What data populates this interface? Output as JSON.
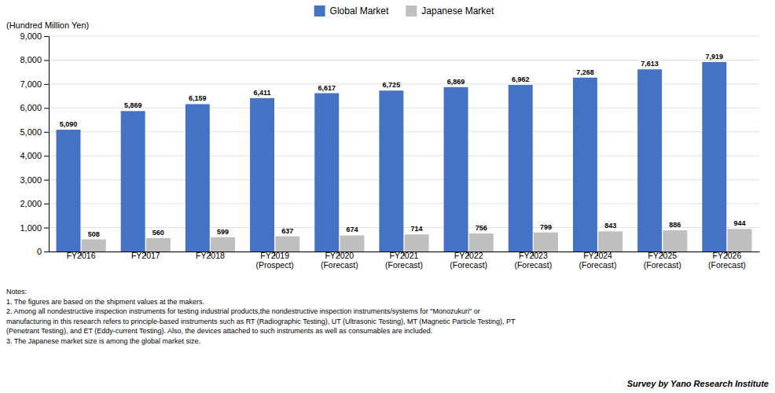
{
  "chart_data": {
    "type": "bar",
    "ylabel": "(Hundred Million Yen)",
    "categories": [
      "FY2016",
      "FY2017",
      "FY2018",
      "FY2019\n(Prospect)",
      "FY2020\n(Forecast)",
      "FY2021\n(Forecast)",
      "FY2022\n(Forecast)",
      "FY2023\n(Forecast)",
      "FY2024\n(Forecast)",
      "FY2025\n(Forecast)",
      "FY2026\n(Forecast)"
    ],
    "series": [
      {
        "name": "Global Market",
        "color": "#4472C4",
        "values": [
          5090,
          5869,
          6159,
          6411,
          6617,
          6725,
          6869,
          6962,
          7268,
          7613,
          7919
        ],
        "value_labels": [
          "5,090",
          "5,869",
          "6,159",
          "6,411",
          "6,617",
          "6,725",
          "6,869",
          "6,962",
          "7,268",
          "7,613",
          "7,919"
        ]
      },
      {
        "name": "Japanese Market",
        "color": "#BFBFBF",
        "values": [
          508,
          560,
          599,
          637,
          674,
          714,
          756,
          799,
          843,
          886,
          944
        ],
        "value_labels": [
          "508",
          "560",
          "599",
          "637",
          "674",
          "714",
          "756",
          "799",
          "843",
          "886",
          "944"
        ]
      }
    ],
    "ylim": [
      0,
      9000
    ],
    "yticks": [
      0,
      {
        "value": 1000,
        "label": "1,000"
      },
      {
        "value": 2000,
        "label": "2,000"
      },
      {
        "value": 3000,
        "label": "3,000"
      },
      {
        "value": 4000,
        "label": "4,000"
      },
      {
        "value": 5000,
        "label": "5,000"
      },
      {
        "value": 6000,
        "label": "6,000"
      },
      {
        "value": 7000,
        "label": "7,000"
      },
      {
        "value": 8000,
        "label": "8,000"
      },
      {
        "value": 9000,
        "label": "9,000"
      }
    ],
    "grid": true,
    "legend": "top",
    "data_labels": true,
    "notes": [
      "Notes:",
      "1. The figures are based on the shipment values at the makers.",
      "2. Among all nondestructive inspection instruments for testing industrial products,the nondestructive inspection instruments/systems for \"Monozukuri\" or",
      "manufacturing in this research refers to principle-based instruments such as RT (Radiographic Testing), UT (Ultrasonic Testing), MT (Magnetic Particle Testing), PT",
      "(Penetrant Testing), and ET (Eddy-current Testing). Also, the devices attached to such instruments as well as consumables are included.",
      "3. The Japanese market size is among the global market size."
    ],
    "source": "Survey by Yano Research Institute"
  }
}
